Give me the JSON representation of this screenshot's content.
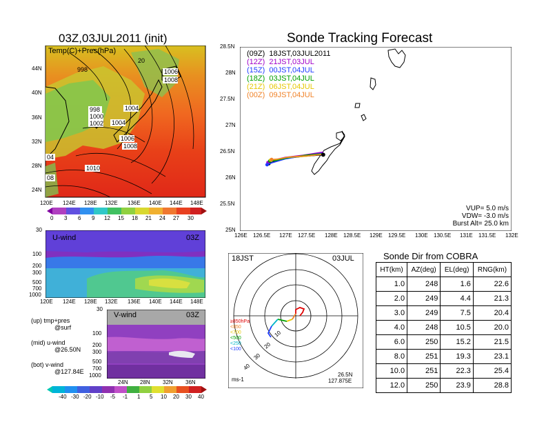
{
  "map_panel": {
    "title": "03Z,03JUL2011 (init)",
    "overlay_label": "Temp(C)+Pres(hPa)",
    "lat_ticks": [
      "44N",
      "40N",
      "36N",
      "32N",
      "28N",
      "24N"
    ],
    "lon_ticks": [
      "120E",
      "124E",
      "128E",
      "132E",
      "136E",
      "140E",
      "144E",
      "148E"
    ],
    "isobar_labels": [
      "998",
      "1006",
      "1008",
      "998",
      "1000",
      "1002",
      "1004",
      "1004",
      "1006",
      "1008",
      "1010",
      "04",
      "08",
      "20"
    ],
    "colorbar_ticks": [
      "0",
      "3",
      "6",
      "9",
      "12",
      "15",
      "18",
      "21",
      "24",
      "27",
      "30"
    ]
  },
  "u_wind_panel": {
    "label": "U-wind",
    "time": "03Z",
    "p_ticks": [
      "30",
      "100",
      "200",
      "300",
      "500",
      "700",
      "1000"
    ],
    "lon_ticks": [
      "120E",
      "124E",
      "128E",
      "132E",
      "136E",
      "140E",
      "144E",
      "148E"
    ]
  },
  "v_wind_panel": {
    "label": "V-wind",
    "time": "03Z",
    "p_ticks": [
      "30",
      "100",
      "200",
      "300",
      "500",
      "700",
      "1000"
    ],
    "lat_ticks": [
      "24N",
      "28N",
      "32N",
      "36N"
    ]
  },
  "wind_colorbar_ticks": [
    "-40",
    "-30",
    "-20",
    "-10",
    "-5",
    "-1",
    "1",
    "5",
    "10",
    "20",
    "30",
    "40"
  ],
  "legend_notes": [
    {
      "line1": "(up) tmp+pres",
      "line2": "@surf"
    },
    {
      "line1": "(mid) u-wind",
      "line2": "@26.50N"
    },
    {
      "line1": "(bot) v-wind",
      "line2": "@127.84E"
    }
  ],
  "tracking": {
    "title": "Sonde Tracking Forecast",
    "lat_ticks": [
      "28.5N",
      "28N",
      "27.5N",
      "27N",
      "26.5N",
      "26N",
      "25.5N",
      "25N"
    ],
    "lon_ticks": [
      "126E",
      "126.5E",
      "127E",
      "127.5E",
      "128E",
      "128.5E",
      "129E",
      "129.5E",
      "130E",
      "130.5E",
      "131E",
      "131.5E",
      "132E"
    ],
    "legend": [
      {
        "text": "(09Z)  18JST,03JUL2011",
        "color": "#000000"
      },
      {
        "text": "(12Z)  21JST,03JUL",
        "color": "#a000c8"
      },
      {
        "text": "(15Z)  00JST,04JUL",
        "color": "#1e3cff"
      },
      {
        "text": "(18Z)  03JST,04JUL",
        "color": "#00a000"
      },
      {
        "text": "(21Z)  06JST,04JUL",
        "color": "#e6c800"
      },
      {
        "text": "(00Z)  09JST,04JUL",
        "color": "#f08228"
      }
    ],
    "params": [
      "VUP= 5.0 m/s",
      "VDW= -3.0 m/s",
      "Burst Alt= 25.0 km"
    ]
  },
  "polar": {
    "time_label": "18JST",
    "date_label": "03JUL",
    "level_legend": [
      {
        "text": "≥850hPa",
        "color": "#e00000"
      },
      {
        "text": "<850",
        "color": "#f08228"
      },
      {
        "text": "<700",
        "color": "#e6c800"
      },
      {
        "text": "<500",
        "color": "#00a000"
      },
      {
        "text": "<250",
        "color": "#00b4c8"
      },
      {
        "text": "<100",
        "color": "#1e3cff"
      }
    ],
    "ring_labels": [
      "10",
      "20",
      "30",
      "40"
    ],
    "units": "ms-1",
    "location_lat": "26.5N",
    "location_lon": "127.875E"
  },
  "sonde_table": {
    "title": "Sonde Dir from COBRA",
    "headers": [
      "HT(km)",
      "AZ(deg)",
      "EL(deg)",
      "RNG(km)"
    ],
    "rows": [
      [
        "1.0",
        "248",
        "1.6",
        "22.6"
      ],
      [
        "2.0",
        "249",
        "4.4",
        "21.3"
      ],
      [
        "3.0",
        "249",
        "7.5",
        "20.4"
      ],
      [
        "4.0",
        "248",
        "10.5",
        "20.0"
      ],
      [
        "6.0",
        "250",
        "15.2",
        "21.5"
      ],
      [
        "8.0",
        "251",
        "19.3",
        "23.1"
      ],
      [
        "10.0",
        "251",
        "22.3",
        "25.4"
      ],
      [
        "12.0",
        "250",
        "23.9",
        "28.8"
      ]
    ]
  },
  "chart_data": [
    {
      "type": "heatmap",
      "title": "03Z,03JUL2011 (init)",
      "subtitle": "Temp(C)+Pres(hPa)",
      "xlabel": "",
      "ylabel": "",
      "x_range": [
        "120E",
        "150E"
      ],
      "y_range": [
        "22N",
        "46N"
      ],
      "colorbar": [
        0,
        3,
        6,
        9,
        12,
        15,
        18,
        21,
        24,
        27,
        30
      ]
    },
    {
      "type": "heatmap",
      "title": "U-wind",
      "subtitle": "03Z",
      "x_range": [
        "120E",
        "150E"
      ],
      "y_ticks": [
        30,
        100,
        200,
        300,
        500,
        700,
        1000
      ],
      "colorbar": [
        -40,
        -30,
        -20,
        -10,
        -5,
        -1,
        1,
        5,
        10,
        20,
        30,
        40
      ]
    },
    {
      "type": "heatmap",
      "title": "V-wind",
      "subtitle": "03Z",
      "x_range": [
        "22N",
        "38N"
      ],
      "y_ticks": [
        30,
        100,
        200,
        300,
        500,
        700,
        1000
      ],
      "colorbar": [
        -40,
        -30,
        -20,
        -10,
        -5,
        -1,
        1,
        5,
        10,
        20,
        30,
        40
      ]
    },
    {
      "type": "line",
      "title": "Sonde Tracking Forecast",
      "xlim": [
        126,
        132
      ],
      "ylim": [
        25,
        28.5
      ],
      "series": [
        {
          "name": "(09Z)  18JST,03JUL2011",
          "color": "#000000",
          "points": [
            [
              127.84,
              26.45
            ],
            [
              127.4,
              26.42
            ],
            [
              127.0,
              26.38
            ],
            [
              126.75,
              26.32
            ],
            [
              126.64,
              26.28
            ]
          ]
        },
        {
          "name": "(12Z)  21JST,03JUL",
          "color": "#a000c8",
          "points": [
            [
              127.84,
              26.5
            ],
            [
              127.4,
              26.44
            ],
            [
              127.0,
              26.4
            ],
            [
              126.75,
              26.35
            ],
            [
              126.62,
              26.3
            ]
          ]
        },
        {
          "name": "(15Z)  00JST,04JUL",
          "color": "#1e3cff",
          "points": [
            [
              127.84,
              26.48
            ],
            [
              127.4,
              26.43
            ],
            [
              127.0,
              26.37
            ],
            [
              126.72,
              26.3
            ],
            [
              126.6,
              26.26
            ]
          ]
        },
        {
          "name": "(18Z)  03JST,04JUL",
          "color": "#00a000",
          "points": [
            [
              127.84,
              26.47
            ],
            [
              127.45,
              26.44
            ],
            [
              127.05,
              26.39
            ],
            [
              126.78,
              26.34
            ],
            [
              126.66,
              26.33
            ]
          ]
        },
        {
          "name": "(21Z)  06JST,04JUL",
          "color": "#e6c800",
          "points": [
            [
              127.84,
              26.46
            ],
            [
              127.45,
              26.42
            ],
            [
              127.05,
              26.4
            ],
            [
              126.8,
              26.36
            ],
            [
              126.68,
              26.35
            ]
          ]
        },
        {
          "name": "(00Z)  09JST,04JUL",
          "color": "#f08228",
          "points": [
            [
              127.84,
              26.46
            ],
            [
              127.5,
              26.43
            ],
            [
              127.1,
              26.41
            ],
            [
              126.85,
              26.37
            ],
            [
              126.7,
              26.36
            ]
          ]
        }
      ]
    },
    {
      "type": "table",
      "title": "Sonde Dir from COBRA",
      "columns": [
        "HT(km)",
        "AZ(deg)",
        "EL(deg)",
        "RNG(km)"
      ],
      "rows": [
        [
          1.0,
          248,
          1.6,
          22.6
        ],
        [
          2.0,
          249,
          4.4,
          21.3
        ],
        [
          3.0,
          249,
          7.5,
          20.4
        ],
        [
          4.0,
          248,
          10.5,
          20.0
        ],
        [
          6.0,
          250,
          15.2,
          21.5
        ],
        [
          8.0,
          251,
          19.3,
          23.1
        ],
        [
          10.0,
          251,
          22.3,
          25.4
        ],
        [
          12.0,
          250,
          23.9,
          28.8
        ]
      ]
    }
  ]
}
